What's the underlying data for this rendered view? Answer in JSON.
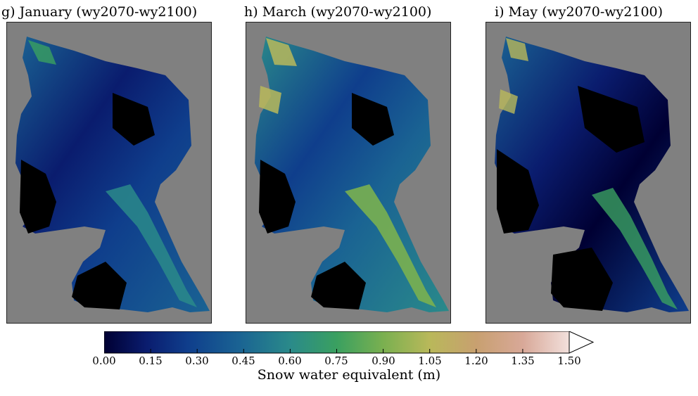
{
  "panels": [
    {
      "title": "g) January (wy2070-wy2100)",
      "month": "January"
    },
    {
      "title": "h) March (wy2070-wy2100)",
      "month": "March"
    },
    {
      "title": "i) May (wy2070-wy2100)",
      "month": "May"
    }
  ],
  "colorbar": {
    "ticks": [
      "0.00",
      "0.15",
      "0.30",
      "0.45",
      "0.60",
      "0.75",
      "0.90",
      "1.05",
      "1.20",
      "1.35",
      "1.50"
    ],
    "label": "Snow water equivalent (m)",
    "range": [
      0,
      1.5
    ],
    "extend": "max",
    "colors": [
      "#000033",
      "#0a1c6e",
      "#0f3e8c",
      "#1a6393",
      "#2a8a8a",
      "#3aa060",
      "#7ab050",
      "#b9b85a",
      "#c8a070",
      "#d8a898",
      "#f2e0dc",
      "#ffffff"
    ]
  },
  "colors": {
    "masked_background": "#808080",
    "no_snow": "#000000"
  }
}
